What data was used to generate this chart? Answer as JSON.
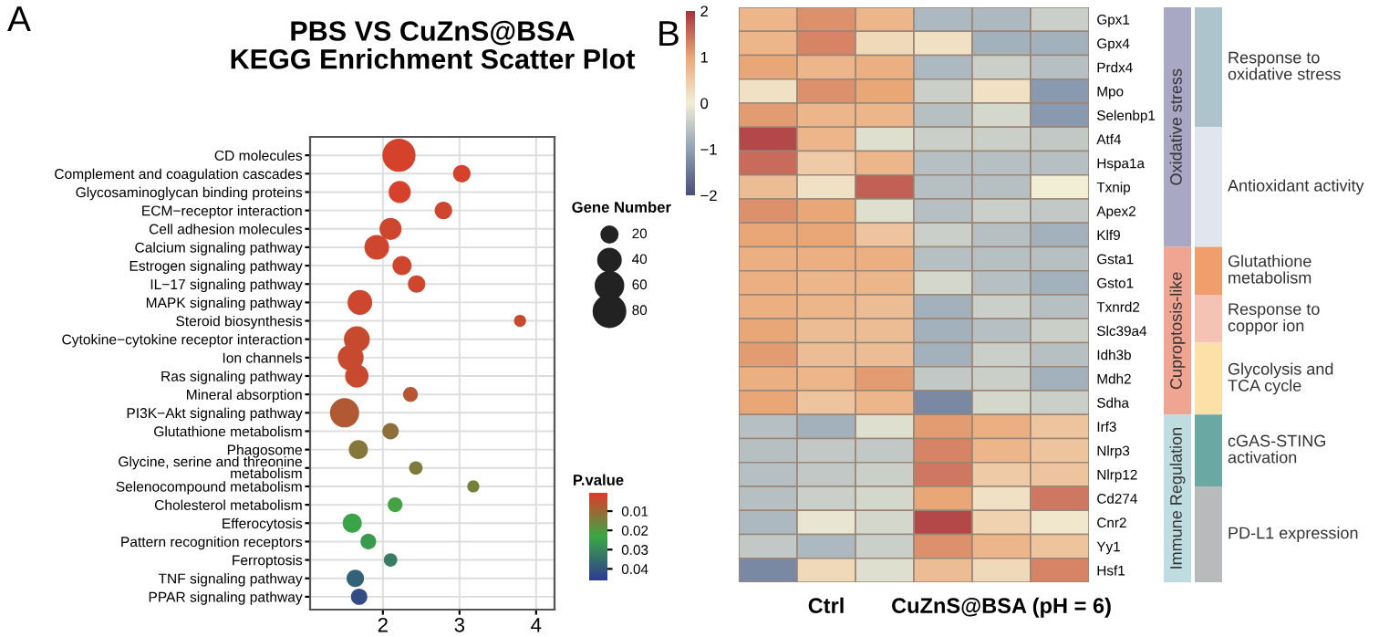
{
  "chart_data": [
    {
      "type": "bubble",
      "orientation": "horizontal",
      "title": "PBS VS CuZnS@BSA\nKEGG Enrichment Scatter Plot",
      "categories": [
        "CD molecules",
        "Complement and coagulation cascades",
        "Glycosaminoglycan binding proteins",
        "ECM−receptor interaction",
        "Cell adhesion molecules",
        "Calcium signaling pathway",
        "Estrogen signaling pathway",
        "IL−17 signaling pathway",
        "MAPK signaling pathway",
        "Steroid biosynthesis",
        "Cytokine−cytokine receptor interaction",
        "Ion channels",
        "Ras signaling pathway",
        "Mineral absorption",
        "PI3K−Akt signaling pathway",
        "Glutathione metabolism",
        "Phagosome",
        "Glycine, serine and threonine\nmetabolism",
        "Selenocompound metabolism",
        "Cholesterol metabolism",
        "Efferocytosis",
        "Pattern recognition receptors",
        "Ferroptosis",
        "TNF signaling pathway",
        "PPAR signaling pathway"
      ],
      "values": [
        2.21,
        3.03,
        2.22,
        2.79,
        2.1,
        1.92,
        2.25,
        2.44,
        1.7,
        3.79,
        1.66,
        1.58,
        1.66,
        2.36,
        1.5,
        2.1,
        1.68,
        2.43,
        3.18,
        2.16,
        1.6,
        1.81,
        2.1,
        1.64,
        1.69
      ],
      "sizes": [
        90,
        25,
        40,
        25,
        40,
        50,
        30,
        25,
        50,
        12,
        55,
        55,
        45,
        18,
        70,
        22,
        30,
        15,
        12,
        18,
        30,
        20,
        15,
        25,
        22
      ],
      "cvalues": [
        0.002,
        0.002,
        0.002,
        0.003,
        0.003,
        0.003,
        0.003,
        0.003,
        0.003,
        0.004,
        0.004,
        0.004,
        0.004,
        0.006,
        0.007,
        0.012,
        0.013,
        0.014,
        0.015,
        0.022,
        0.024,
        0.026,
        0.032,
        0.038,
        0.042
      ],
      "size_legend": [
        20,
        40,
        60,
        80
      ],
      "legend_title": "Gene Number",
      "clabel": "P.value",
      "clim": [
        0.0005,
        0.046
      ],
      "cticks": [
        0.01,
        0.02,
        0.03,
        0.04
      ],
      "xlim": [
        1.05,
        4.24
      ],
      "xticks": [
        2,
        3,
        4
      ],
      "grid": true,
      "annotations": [
        "A"
      ]
    },
    {
      "type": "heatmap",
      "categories": [
        null,
        "Ctrl",
        null,
        null,
        "CuZnS@BSA (pH = 6)",
        null
      ],
      "y_categories": [
        "Gpx1",
        "Gpx4",
        "Prdx4",
        "Mpo",
        "Selenbp1",
        "Atf4",
        "Hspa1a",
        "Txnip",
        "Apex2",
        "Klf9",
        "Gsta1",
        "Gsto1",
        "Txnrd2",
        "Slc39a4",
        "Idh3b",
        "Mdh2",
        "Sdha",
        "Irf3",
        "Nlrp3",
        "Nlrp12",
        "Cd274",
        "Cnr2",
        "Yy1",
        "Hsf1"
      ],
      "cells": [
        [
          0.8,
          1.2,
          0.8,
          -0.7,
          -0.7,
          -0.4
        ],
        [
          0.8,
          1.3,
          0.3,
          0.2,
          -0.8,
          -0.8
        ],
        [
          1.0,
          0.8,
          0.9,
          -0.7,
          -0.4,
          -0.6
        ],
        [
          0.2,
          1.2,
          1.0,
          -0.4,
          0.2,
          -1.1
        ],
        [
          1.1,
          0.8,
          0.8,
          -0.6,
          -0.3,
          -1.1
        ],
        [
          1.8,
          0.8,
          -0.2,
          -0.4,
          -0.4,
          -0.5
        ],
        [
          1.5,
          0.5,
          0.8,
          -0.6,
          -0.6,
          -0.6
        ],
        [
          0.7,
          0.2,
          1.6,
          -0.6,
          -0.6,
          0.0
        ],
        [
          1.2,
          1.0,
          -0.2,
          -0.6,
          -0.4,
          -0.5
        ],
        [
          1.0,
          1.0,
          0.6,
          -0.4,
          -0.6,
          -0.8
        ],
        [
          0.9,
          0.9,
          0.9,
          -0.6,
          -0.6,
          -0.6
        ],
        [
          0.9,
          0.8,
          0.8,
          -0.3,
          -0.6,
          -0.8
        ],
        [
          0.9,
          0.8,
          0.7,
          -0.8,
          -0.4,
          -0.6
        ],
        [
          1.0,
          0.7,
          0.7,
          -0.8,
          -0.6,
          -0.4
        ],
        [
          1.1,
          0.7,
          0.7,
          -0.8,
          -0.4,
          -0.6
        ],
        [
          0.9,
          0.8,
          1.1,
          -0.5,
          -0.4,
          -0.8
        ],
        [
          1.0,
          0.6,
          0.8,
          -1.3,
          -0.3,
          -0.4
        ],
        [
          -0.6,
          -0.8,
          -0.2,
          1.1,
          0.9,
          0.6
        ],
        [
          -0.6,
          -0.5,
          -0.5,
          1.3,
          0.8,
          0.6
        ],
        [
          -0.6,
          -0.5,
          -0.4,
          1.4,
          0.5,
          0.6
        ],
        [
          -0.6,
          -0.4,
          -0.3,
          1.0,
          0.2,
          1.4
        ],
        [
          -0.7,
          -0.1,
          -0.3,
          1.8,
          0.4,
          0.1
        ],
        [
          -0.5,
          -0.7,
          -0.4,
          1.2,
          0.8,
          0.6
        ],
        [
          -1.3,
          0.3,
          -0.2,
          0.7,
          0.3,
          1.3
        ]
      ],
      "clim": [
        -2,
        2
      ],
      "cticks": [
        {
          "value": -2,
          "label": "−2"
        },
        {
          "value": -1,
          "label": "−1"
        },
        0,
        1,
        2
      ],
      "annotations": [
        "B",
        "Oxidative stress",
        "Cuproptosis-like",
        "Immune Regulation",
        "Response to\noxidative stress",
        "Antioxidant activity",
        "Glutathione\nmetabolism",
        "Response to\ncoppor ion",
        "Glycolysis and\nTCA cycle",
        "cGAS-STING\nactivation",
        "PD-L1 expression"
      ]
    }
  ]
}
